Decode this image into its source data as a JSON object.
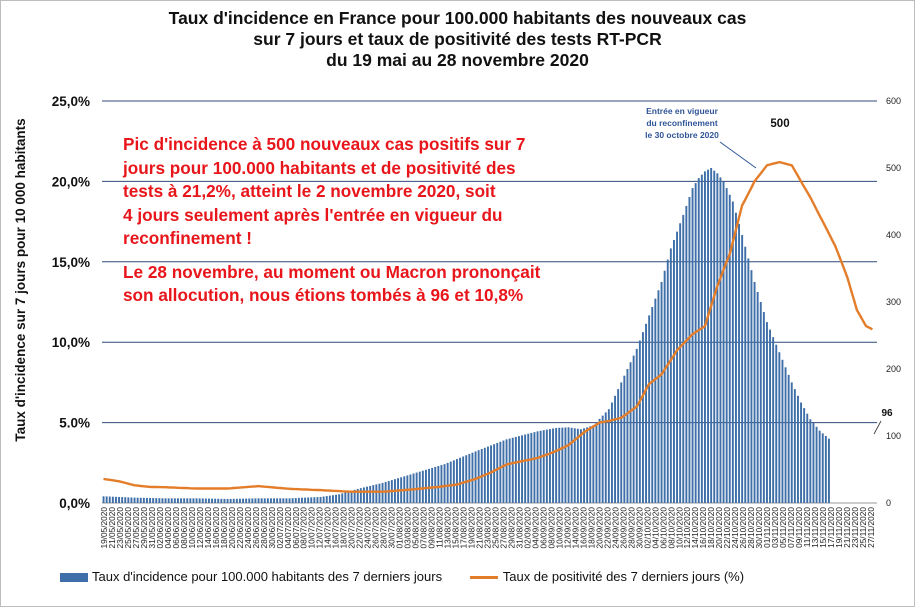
{
  "title_lines": [
    "Taux d'incidence en France pour 100.000 habitants des nouveaux cas",
    "sur 7 jours et taux de positivité des tests RT-PCR",
    "du 19 mai au 28 novembre 2020"
  ],
  "annotation": {
    "para1": [
      "Pic d'incidence à 500 nouveaux cas positifs sur 7",
      "jours pour 100.000 habitants et de positivité des",
      "tests à 21,2%, atteint le 2 novembre 2020, soit",
      "4 jours seulement après l'entrée en vigueur du",
      "reconfinement !"
    ],
    "para2": [
      "Le 28 novembre, au moment ou Macron prononçait",
      "son allocution, nous étions tombés à 96 et 10,8%"
    ]
  },
  "callout_lines": [
    "Entrée en vigueur",
    "du reconfinement",
    "le 30 octobre 2020"
  ],
  "peak_label": "500",
  "end_label": "96",
  "colors": {
    "bars": "#3e6fa8",
    "line": "#e37d2a",
    "grid": "#2f4a7a"
  },
  "chart_data": {
    "type": "bar+line",
    "ylabel": "Taux d'incidence sur 7 jours pour 10 000 habitants",
    "left_axis": {
      "ticks": [
        "0,0%",
        "5.0%",
        "10,0%",
        "15,0%",
        "20,0%",
        "25,0%"
      ],
      "range": [
        0,
        25
      ]
    },
    "right_axis": {
      "ticks": [
        "0",
        "100",
        "200",
        "300",
        "400",
        "500",
        "600"
      ],
      "range": [
        0,
        600
      ]
    },
    "x_tick_labels": [
      "19/05/2020",
      "21/05/2020",
      "23/05/2020",
      "25/05/2020",
      "27/05/2020",
      "29/05/2020",
      "31/05/2020",
      "02/06/2020",
      "04/06/2020",
      "06/06/2020",
      "08/06/2020",
      "10/06/2020",
      "12/06/2020",
      "14/06/2020",
      "16/06/2020",
      "18/06/2020",
      "20/06/2020",
      "22/06/2020",
      "24/06/2020",
      "26/06/2020",
      "28/06/2020",
      "30/06/2020",
      "02/07/2020",
      "04/07/2020",
      "06/07/2020",
      "08/07/2020",
      "10/07/2020",
      "12/07/2020",
      "14/07/2020",
      "16/07/2020",
      "18/07/2020",
      "20/07/2020",
      "22/07/2020",
      "24/07/2020",
      "26/07/2020",
      "28/07/2020",
      "30/07/2020",
      "01/08/2020",
      "03/08/2020",
      "05/08/2020",
      "07/08/2020",
      "09/08/2020",
      "11/08/2020",
      "13/08/2020",
      "15/08/2020",
      "17/08/2020",
      "19/08/2020",
      "21/08/2020",
      "23/08/2020",
      "25/08/2020",
      "27/08/2020",
      "29/08/2020",
      "31/08/2020",
      "02/09/2020",
      "04/09/2020",
      "06/09/2020",
      "08/09/2020",
      "10/09/2020",
      "12/09/2020",
      "14/09/2020",
      "16/09/2020",
      "18/09/2020",
      "20/09/2020",
      "22/09/2020",
      "24/09/2020",
      "26/09/2020",
      "28/09/2020",
      "30/09/2020",
      "02/10/2020",
      "04/10/2020",
      "06/10/2020",
      "08/10/2020",
      "10/10/2020",
      "12/10/2020",
      "14/10/2020",
      "16/10/2020",
      "18/10/2020",
      "20/10/2020",
      "22/10/2020",
      "24/10/2020",
      "26/10/2020",
      "28/10/2020",
      "30/10/2020",
      "01/11/2020",
      "03/11/2020",
      "05/11/2020",
      "07/11/2020",
      "09/11/2020",
      "11/11/2020",
      "13/11/2020",
      "15/11/2020",
      "17/11/2020",
      "19/11/2020",
      "21/11/2020",
      "23/11/2020",
      "25/11/2020",
      "27/11/2020"
    ],
    "series": [
      {
        "name": "Taux d'incidence  pour 100.000 habitants des 7 derniers jours",
        "type": "bar",
        "axis": "right",
        "anchors": [
          [
            0,
            10
          ],
          [
            10,
            8
          ],
          [
            20,
            7
          ],
          [
            30,
            7
          ],
          [
            40,
            6
          ],
          [
            50,
            7
          ],
          [
            60,
            7
          ],
          [
            70,
            9
          ],
          [
            76,
            13
          ],
          [
            82,
            21
          ],
          [
            90,
            30
          ],
          [
            100,
            44
          ],
          [
            110,
            58
          ],
          [
            120,
            77
          ],
          [
            130,
            95
          ],
          [
            140,
            107
          ],
          [
            146,
            112
          ],
          [
            150,
            113
          ],
          [
            154,
            110
          ],
          [
            158,
            116
          ],
          [
            163,
            140
          ],
          [
            168,
            190
          ],
          [
            172,
            230
          ],
          [
            176,
            280
          ],
          [
            180,
            330
          ],
          [
            183,
            380
          ],
          [
            187,
            430
          ],
          [
            190,
            470
          ],
          [
            192,
            485
          ],
          [
            194,
            495
          ],
          [
            196,
            500
          ],
          [
            198,
            492
          ],
          [
            200,
            480
          ],
          [
            203,
            450
          ],
          [
            206,
            400
          ],
          [
            210,
            330
          ],
          [
            214,
            270
          ],
          [
            218,
            225
          ],
          [
            222,
            180
          ],
          [
            225,
            150
          ],
          [
            228,
            125
          ],
          [
            231,
            108
          ],
          [
            233,
            100
          ],
          [
            234,
            96
          ]
        ]
      },
      {
        "name": "Taux de positivité des 7 derniers jours (%)",
        "type": "line",
        "axis": "left",
        "anchors": [
          [
            0,
            1.5
          ],
          [
            5,
            1.35
          ],
          [
            10,
            1.1
          ],
          [
            15,
            1.0
          ],
          [
            20,
            0.98
          ],
          [
            30,
            0.9
          ],
          [
            40,
            0.9
          ],
          [
            50,
            1.05
          ],
          [
            60,
            0.88
          ],
          [
            70,
            0.8
          ],
          [
            80,
            0.7
          ],
          [
            90,
            0.7
          ],
          [
            100,
            0.85
          ],
          [
            108,
            1.0
          ],
          [
            114,
            1.15
          ],
          [
            120,
            1.5
          ],
          [
            125,
            1.9
          ],
          [
            130,
            2.4
          ],
          [
            135,
            2.6
          ],
          [
            140,
            2.8
          ],
          [
            145,
            3.15
          ],
          [
            150,
            3.6
          ],
          [
            155,
            4.4
          ],
          [
            160,
            5.0
          ],
          [
            163,
            5.1
          ],
          [
            167,
            5.3
          ],
          [
            172,
            6.0
          ],
          [
            176,
            7.4
          ],
          [
            180,
            8.0
          ],
          [
            185,
            9.5
          ],
          [
            190,
            10.5
          ],
          [
            194,
            11.0
          ],
          [
            198,
            13.5
          ],
          [
            202,
            15.5
          ],
          [
            206,
            18.5
          ],
          [
            210,
            20.0
          ],
          [
            214,
            21.0
          ],
          [
            218,
            21.2
          ],
          [
            222,
            21.0
          ],
          [
            225,
            20.0
          ],
          [
            228,
            19.0
          ],
          [
            232,
            17.5
          ],
          [
            236,
            16.0
          ],
          [
            240,
            14.0
          ],
          [
            243,
            12.0
          ],
          [
            246,
            11.0
          ],
          [
            248,
            10.8
          ]
        ]
      }
    ],
    "grid": true,
    "legend_position": "bottom"
  }
}
